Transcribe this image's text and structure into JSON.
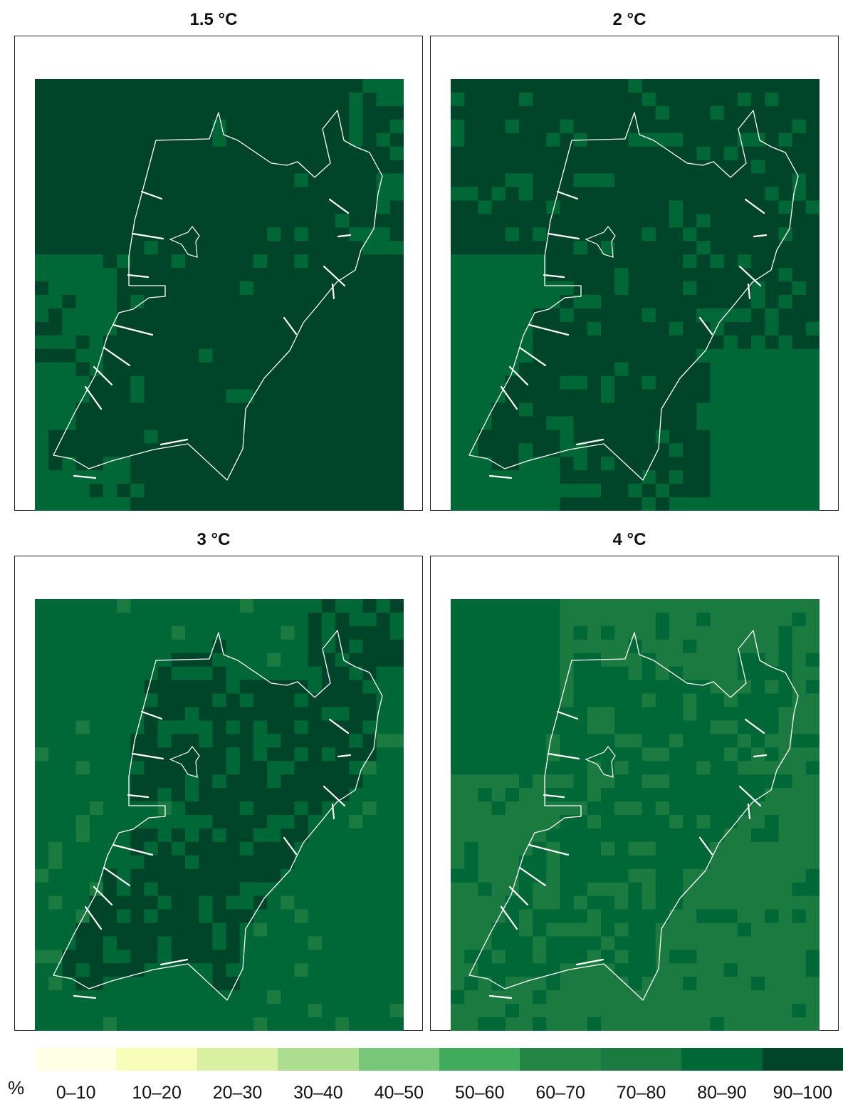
{
  "chart_data": {
    "type": "heatmap",
    "panels": [
      {
        "title": "1.5 °C",
        "dominant_class": "90–100"
      },
      {
        "title": "2 °C",
        "dominant_class": "90–100"
      },
      {
        "title": "3 °C",
        "dominant_class": "80–90"
      },
      {
        "title": "4 °C",
        "dominant_class": "70–80"
      }
    ],
    "legend": {
      "unit": "%",
      "classes": [
        "0–10",
        "10–20",
        "20–30",
        "30–40",
        "40–50",
        "50–60",
        "60–70",
        "70–80",
        "80–90",
        "90–100"
      ],
      "colors": [
        "#ffffe5",
        "#f7fcb9",
        "#d9f0a3",
        "#addd8e",
        "#78c679",
        "#41ab5d",
        "#238443",
        "#1b7a3f",
        "#006837",
        "#004529"
      ]
    }
  }
}
